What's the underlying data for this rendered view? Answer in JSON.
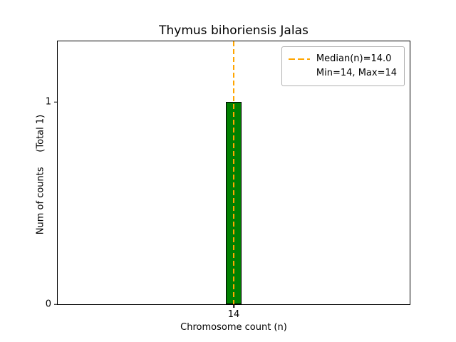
{
  "title": "Thymus bihoriensis Jalas",
  "xlabel": "Chromosome count (n)",
  "ylabel": "Num of counts     (Total 1)",
  "legend": {
    "median_label": "Median(n)=14.0",
    "minmax_label": "Min=14, Max=14"
  },
  "colors": {
    "bar": "#008000",
    "bar_edge": "#000000",
    "median": "#ffa500"
  },
  "chart_data": {
    "type": "bar",
    "title": "Thymus bihoriensis Jalas",
    "xlabel": "Chromosome count (n)",
    "ylabel": "Num of counts     (Total 1)",
    "categories": [
      14
    ],
    "values": [
      1
    ],
    "bar_width": 0.18,
    "xlim": [
      12,
      16
    ],
    "ylim": [
      0,
      1.3
    ],
    "xticks": [
      14
    ],
    "yticks": [
      0,
      1
    ],
    "median_line": {
      "x": 14,
      "value_label": "Median(n)=14.0"
    },
    "annotations": [
      "Min=14, Max=14"
    ],
    "legend_position": "upper right",
    "grid": false,
    "total_counts": 1,
    "min": 14,
    "max": 14,
    "median": 14.0
  }
}
